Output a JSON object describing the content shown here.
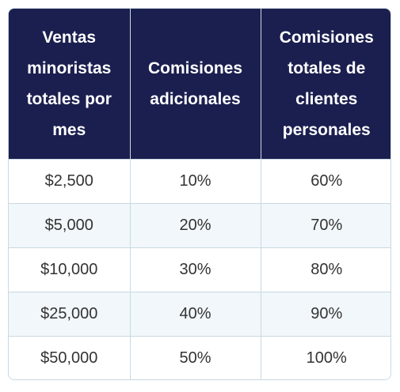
{
  "table": {
    "headers": [
      "Ventas minoristas totales por mes",
      "Comisiones adicionales",
      "Comisiones totales de clientes personales"
    ],
    "rows": [
      [
        "$2,500",
        "10%",
        "60%"
      ],
      [
        "$5,000",
        "20%",
        "70%"
      ],
      [
        "$10,000",
        "30%",
        "80%"
      ],
      [
        "$25,000",
        "40%",
        "90%"
      ],
      [
        "$50,000",
        "50%",
        "100%"
      ]
    ]
  },
  "colors": {
    "header_bg": "#1b1f4f",
    "header_text": "#ffffff",
    "stripe_bg": "#f1f7fa",
    "border": "#c9d9e2",
    "cell_text": "#333333"
  }
}
